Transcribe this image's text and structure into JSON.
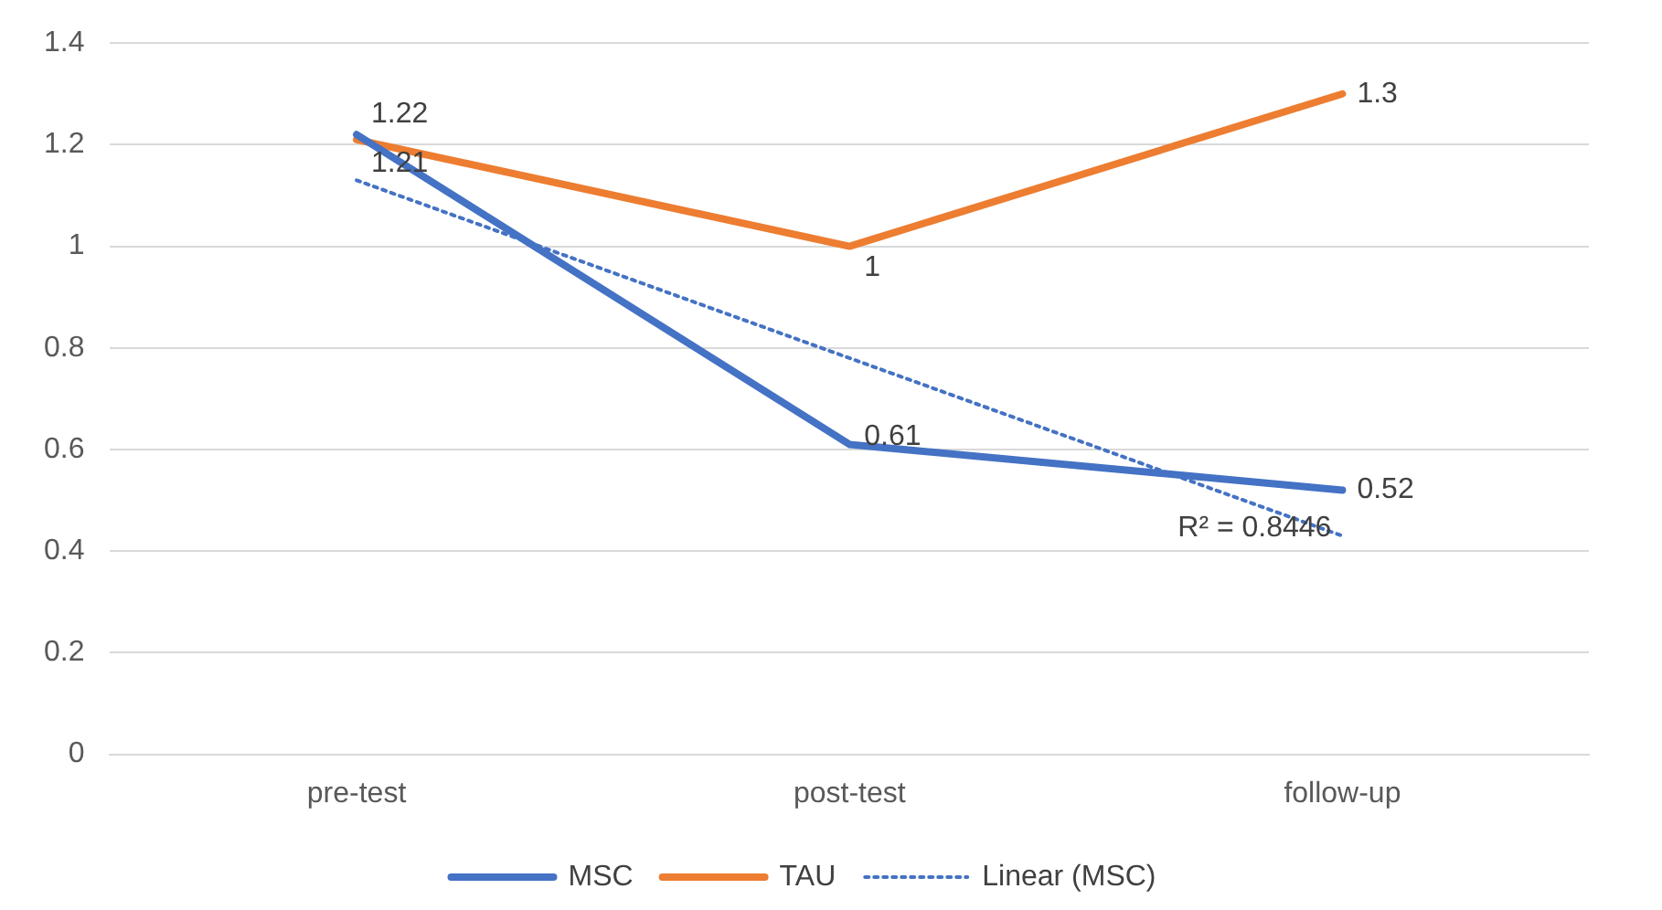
{
  "chart_data": {
    "type": "line",
    "categories": [
      "pre-test",
      "post-test",
      "follow-up"
    ],
    "series": [
      {
        "name": "MSC",
        "color": "#4472c4",
        "values": [
          1.22,
          0.61,
          0.52
        ],
        "value_labels": [
          "1.22",
          "0.61",
          "0.52"
        ]
      },
      {
        "name": "TAU",
        "color": "#ed7d31",
        "values": [
          1.21,
          1,
          1.3
        ],
        "value_labels": [
          "1.21",
          "1",
          "1.3"
        ]
      },
      {
        "name": "Linear (MSC)",
        "color": "#4472c4",
        "values": [
          1.13,
          0.78,
          0.43
        ],
        "line_style": "dotted"
      }
    ],
    "ylim": [
      0,
      1.4
    ],
    "yticks": [
      0,
      0.2,
      0.4,
      0.6,
      0.8,
      1,
      1.2,
      1.4
    ],
    "grid": "y",
    "legend": "bottom",
    "marker": "none",
    "annotations": [
      {
        "text": "R² = 0.8446",
        "x": "follow-up",
        "y": 0.43
      }
    ]
  }
}
